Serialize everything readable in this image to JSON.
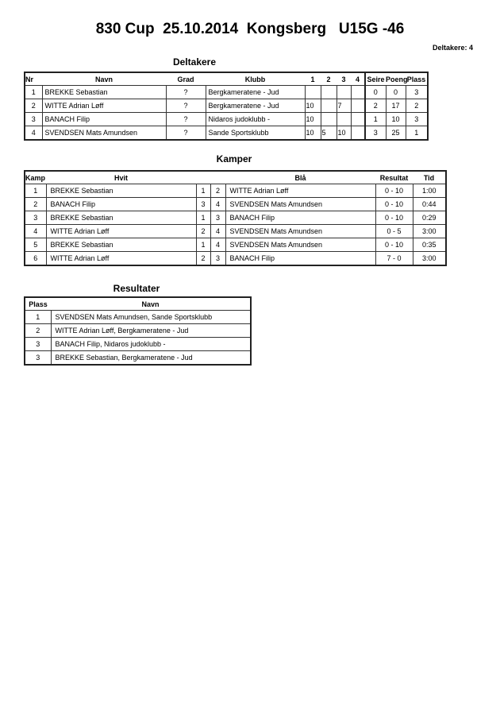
{
  "title": "830 Cup  25.10.2014  Kongsberg   U15G -46",
  "participant_count": "Deltakere: 4",
  "deltakere": {
    "heading": "Deltakere",
    "headers": [
      "Nr",
      "Navn",
      "Grad",
      "Klubb",
      "1",
      "2",
      "3",
      "4",
      "Seire",
      "Poeng",
      "Plass"
    ],
    "rows": [
      [
        "1",
        "BREKKE Sebastian",
        "?",
        "Bergkameratene - Jud",
        "",
        "",
        "",
        "",
        "0",
        "0",
        "3"
      ],
      [
        "2",
        "WITTE Adrian Løff",
        "?",
        "Bergkameratene - Jud",
        "10",
        "",
        "7",
        "",
        "2",
        "17",
        "2"
      ],
      [
        "3",
        "BANACH Filip",
        "?",
        "Nidaros judoklubb -",
        "10",
        "",
        "",
        "",
        "1",
        "10",
        "3"
      ],
      [
        "4",
        "SVENDSEN Mats Amundsen",
        "?",
        "Sande Sportsklubb",
        "10",
        "5",
        "10",
        "",
        "3",
        "25",
        "1"
      ]
    ]
  },
  "kamper": {
    "heading": "Kamper",
    "headers": [
      "Kamp",
      "Hvit",
      "Blå",
      "Resultat",
      "Tid"
    ],
    "rows": [
      [
        "1",
        "BREKKE Sebastian",
        "1",
        "2",
        "WITTE Adrian Løff",
        "0 - 10",
        "1:00"
      ],
      [
        "2",
        "BANACH Filip",
        "3",
        "4",
        "SVENDSEN Mats Amundsen",
        "0 - 10",
        "0:44"
      ],
      [
        "3",
        "BREKKE Sebastian",
        "1",
        "3",
        "BANACH Filip",
        "0 - 10",
        "0:29"
      ],
      [
        "4",
        "WITTE Adrian Løff",
        "2",
        "4",
        "SVENDSEN Mats Amundsen",
        "0 - 5",
        "3:00"
      ],
      [
        "5",
        "BREKKE Sebastian",
        "1",
        "4",
        "SVENDSEN Mats Amundsen",
        "0 - 10",
        "0:35"
      ],
      [
        "6",
        "WITTE Adrian Løff",
        "2",
        "3",
        "BANACH Filip",
        "7 - 0",
        "3:00"
      ]
    ]
  },
  "resultater": {
    "heading": "Resultater",
    "headers": [
      "Plass",
      "Navn"
    ],
    "rows": [
      [
        "1",
        "SVENDSEN Mats Amundsen, Sande Sportsklubb"
      ],
      [
        "2",
        "WITTE Adrian Løff, Bergkameratene - Jud"
      ],
      [
        "3",
        "BANACH Filip, Nidaros judoklubb -"
      ],
      [
        "3",
        "BREKKE Sebastian, Bergkameratene - Jud"
      ]
    ]
  }
}
